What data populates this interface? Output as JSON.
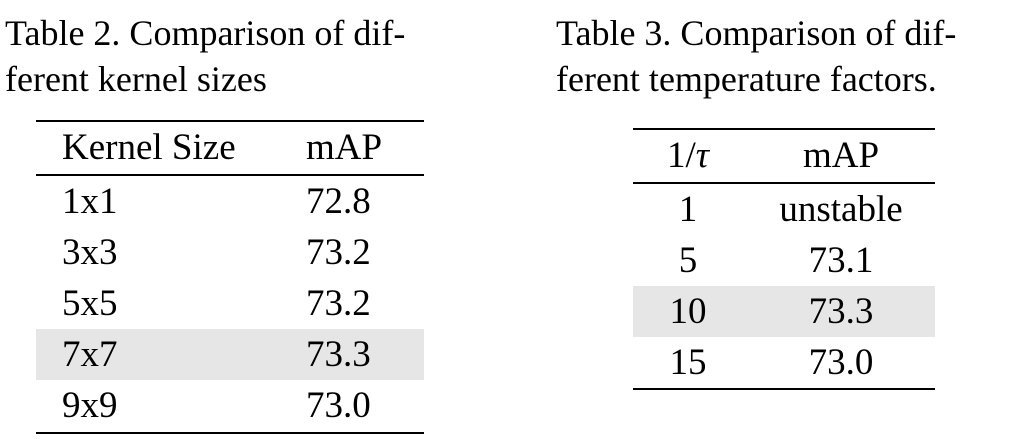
{
  "table2": {
    "caption_line1": "Table 2. Comparison of dif-",
    "caption_line2": "ferent kernel sizes",
    "headers": [
      "Kernel Size",
      "mAP"
    ],
    "rows": [
      {
        "size": "1x1",
        "map": "72.8",
        "highlight": false
      },
      {
        "size": "3x3",
        "map": "73.2",
        "highlight": false
      },
      {
        "size": "5x5",
        "map": "73.2",
        "highlight": false
      },
      {
        "size": "7x7",
        "map": "73.3",
        "highlight": true
      },
      {
        "size": "9x9",
        "map": "73.0",
        "highlight": false
      }
    ]
  },
  "table3": {
    "caption_line1": "Table 3. Comparison of dif-",
    "caption_line2": "ferent temperature factors.",
    "header_prefix": "1/",
    "header_symbol": "τ",
    "header_map": "mAP",
    "rows": [
      {
        "factor": "1",
        "map": "unstable",
        "highlight": false
      },
      {
        "factor": "5",
        "map": "73.1",
        "highlight": false
      },
      {
        "factor": "10",
        "map": "73.3",
        "highlight": true
      },
      {
        "factor": "15",
        "map": "73.0",
        "highlight": false
      }
    ]
  },
  "colors": {
    "highlight": "#e6e6e6",
    "text": "#000000",
    "rule": "#000000"
  }
}
